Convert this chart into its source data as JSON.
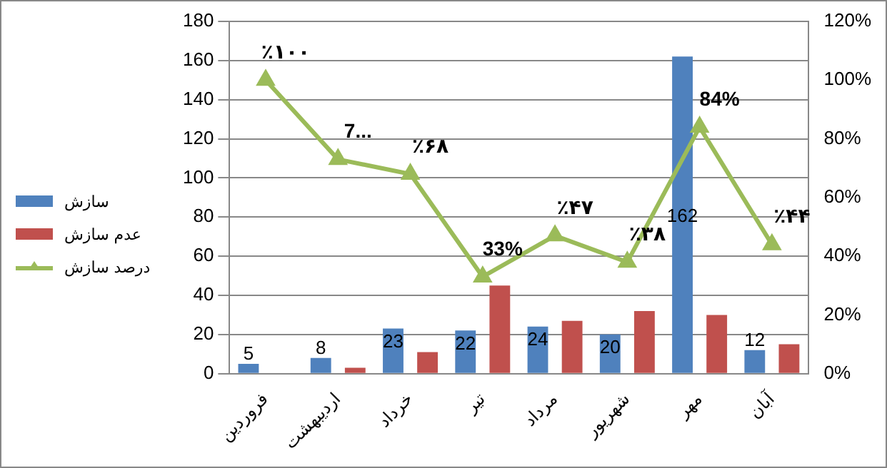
{
  "chart_data": {
    "type": "bar",
    "categories": [
      "فروردین",
      "اردیبهشت",
      "خرداد",
      "تیر",
      "مرداد",
      "شهریور",
      "مهر",
      "آبان"
    ],
    "series": [
      {
        "name": "سازش",
        "color": "#4f81bd",
        "values": [
          5,
          8,
          23,
          22,
          24,
          20,
          162,
          12
        ],
        "value_labels": [
          "5",
          "8",
          "23",
          "22",
          "24",
          "20",
          "162",
          "12"
        ]
      },
      {
        "name": "عدم سازش",
        "color": "#c0504d",
        "values": [
          0,
          3,
          11,
          45,
          27,
          32,
          30,
          15
        ]
      },
      {
        "name": "درصد سازش",
        "type": "line",
        "axis": "y2",
        "color": "#9bbb59",
        "marker": "triangle",
        "values": [
          100,
          73,
          68,
          33,
          47,
          38,
          84,
          44
        ],
        "value_labels": [
          "٪۱۰۰",
          "7...",
          "٪۶۸",
          "33%",
          "٪۴۷",
          "٪۳۸",
          "84%",
          "٪۴۴"
        ]
      }
    ],
    "ylim": [
      0,
      180
    ],
    "yticks": [
      0,
      20,
      40,
      60,
      80,
      100,
      120,
      140,
      160,
      180
    ],
    "y2lim": [
      0,
      120
    ],
    "y2ticks": [
      {
        "value": 0,
        "label": "0%"
      },
      {
        "value": 20,
        "label": "20%"
      },
      {
        "value": 40,
        "label": "40%"
      },
      {
        "value": 60,
        "label": "60%"
      },
      {
        "value": 80,
        "label": "80%"
      },
      {
        "value": 100,
        "label": "100%"
      },
      {
        "value": 120,
        "label": "120%"
      }
    ],
    "grid": "y",
    "legend": "left"
  }
}
